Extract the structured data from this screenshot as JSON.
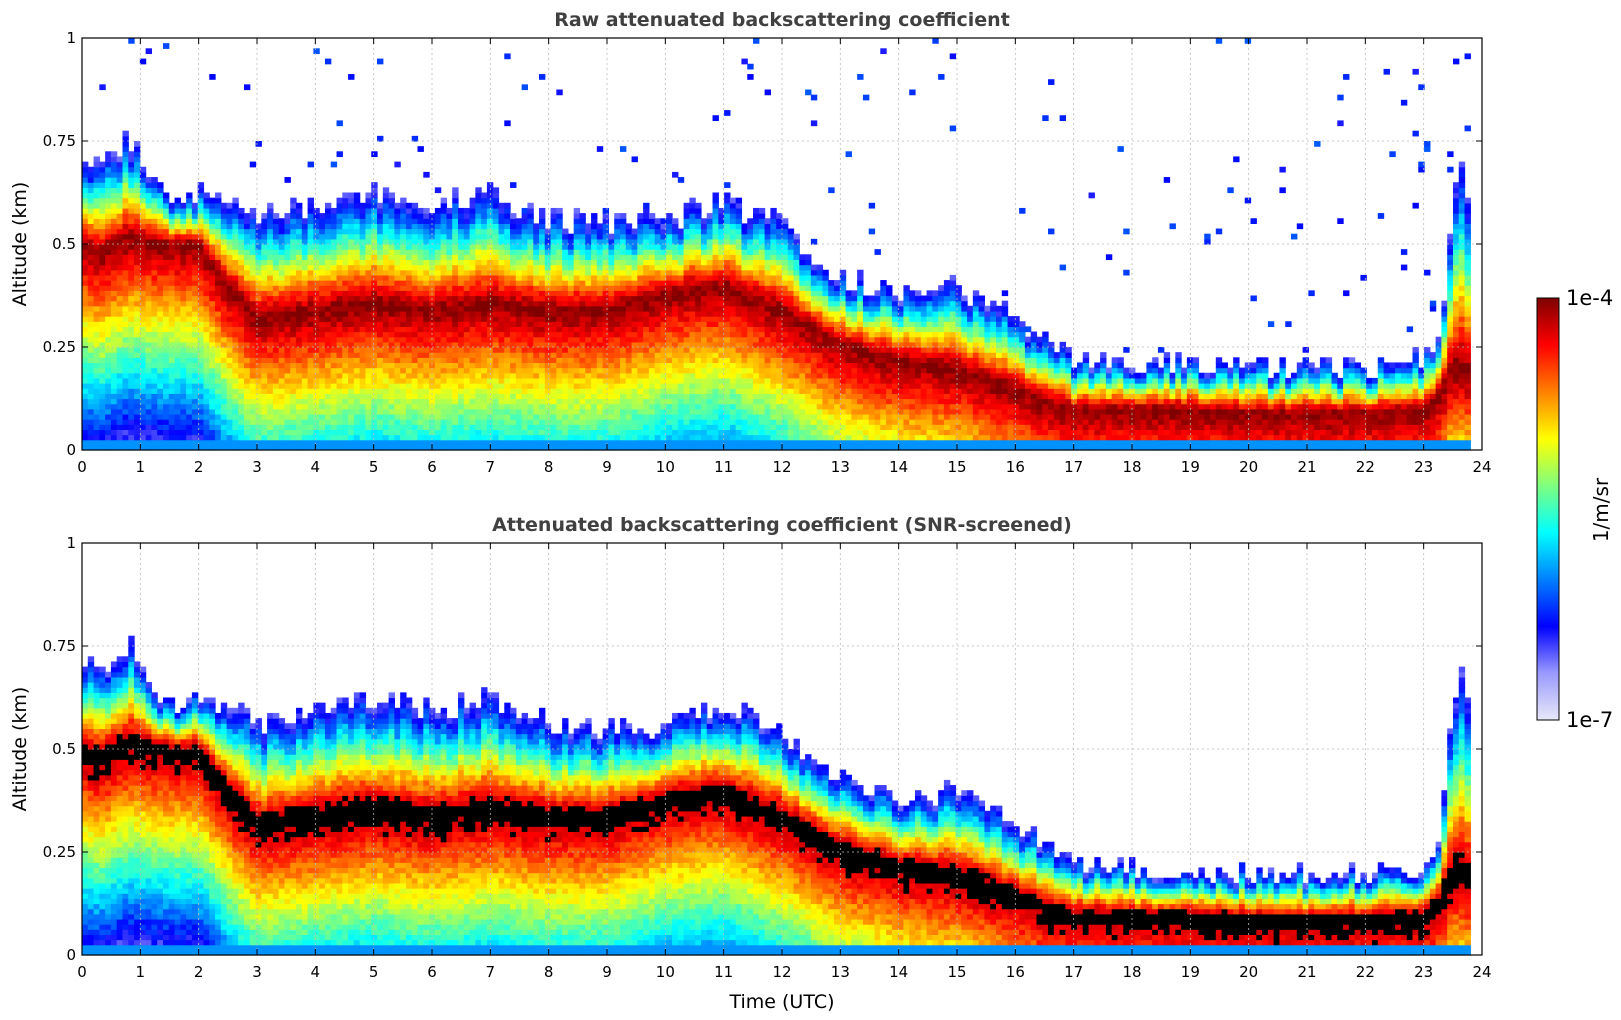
{
  "colors": {
    "accent_dark": "#7f0000",
    "cloud_black": "#000000",
    "grid": "#bbbbbb",
    "title": "#404040"
  },
  "colormap_stops": [
    "#e8e8f8",
    "#9a9aff",
    "#0000ff",
    "#0080ff",
    "#00ffff",
    "#7fff7f",
    "#ffff00",
    "#ff8000",
    "#ff0000",
    "#7f0000"
  ],
  "chart_data": [
    {
      "type": "heatmap",
      "title": "Raw attenuated backscattering coefficient",
      "xlabel": "",
      "ylabel": "Altitude (km)",
      "xlim": [
        0,
        24
      ],
      "ylim": [
        0,
        1
      ],
      "xticks": [
        "0",
        "1",
        "2",
        "3",
        "4",
        "5",
        "6",
        "7",
        "8",
        "9",
        "10",
        "11",
        "12",
        "13",
        "14",
        "15",
        "16",
        "17",
        "18",
        "19",
        "20",
        "21",
        "22",
        "23",
        "24"
      ],
      "yticks": [
        "0",
        "0.25",
        "0.5",
        "0.75",
        "1"
      ],
      "grid": true,
      "data_end_hour": 23.8,
      "profile": {
        "t": [
          0,
          0.3,
          0.8,
          1.5,
          2.0,
          2.5,
          3.0,
          4.0,
          5.0,
          6.0,
          7.0,
          8.0,
          9.0,
          10.0,
          11.0,
          12.0,
          12.5,
          13.0,
          14.0,
          15.0,
          16.0,
          16.5,
          17.0,
          18.0,
          19.0,
          20.0,
          21.0,
          22.0,
          23.0,
          23.3,
          23.5,
          23.7,
          23.8
        ],
        "top": [
          0.72,
          0.7,
          0.75,
          0.6,
          0.62,
          0.62,
          0.56,
          0.6,
          0.62,
          0.6,
          0.62,
          0.56,
          0.55,
          0.56,
          0.6,
          0.55,
          0.48,
          0.42,
          0.38,
          0.4,
          0.32,
          0.27,
          0.22,
          0.21,
          0.21,
          0.2,
          0.2,
          0.2,
          0.22,
          0.3,
          0.6,
          0.72,
          0.55
        ],
        "peak": [
          0.5,
          0.48,
          0.52,
          0.5,
          0.5,
          0.4,
          0.32,
          0.34,
          0.36,
          0.34,
          0.36,
          0.34,
          0.34,
          0.38,
          0.4,
          0.34,
          0.3,
          0.26,
          0.22,
          0.2,
          0.15,
          0.12,
          0.1,
          0.1,
          0.1,
          0.09,
          0.09,
          0.09,
          0.1,
          0.14,
          0.2,
          0.2,
          0.18
        ]
      },
      "noise_spikes": true,
      "saturate_black": false
    },
    {
      "type": "heatmap",
      "title": "Attenuated backscattering coefficient (SNR-screened)",
      "xlabel": "Time (UTC)",
      "ylabel": "Altitude (km)",
      "xlim": [
        0,
        24
      ],
      "ylim": [
        0,
        1
      ],
      "xticks": [
        "0",
        "1",
        "2",
        "3",
        "4",
        "5",
        "6",
        "7",
        "8",
        "9",
        "10",
        "11",
        "12",
        "13",
        "14",
        "15",
        "16",
        "17",
        "18",
        "19",
        "20",
        "21",
        "22",
        "23",
        "24"
      ],
      "yticks": [
        "0",
        "0.25",
        "0.5",
        "0.75",
        "1"
      ],
      "grid": true,
      "data_end_hour": 23.8,
      "profile": {
        "t": [
          0,
          0.3,
          0.8,
          1.5,
          2.0,
          2.5,
          3.0,
          4.0,
          5.0,
          6.0,
          7.0,
          8.0,
          9.0,
          10.0,
          11.0,
          12.0,
          12.5,
          13.0,
          14.0,
          15.0,
          16.0,
          16.5,
          17.0,
          18.0,
          19.0,
          20.0,
          21.0,
          22.0,
          23.0,
          23.3,
          23.5,
          23.7,
          23.8
        ],
        "top": [
          0.72,
          0.7,
          0.75,
          0.6,
          0.62,
          0.62,
          0.56,
          0.6,
          0.62,
          0.6,
          0.62,
          0.56,
          0.55,
          0.56,
          0.6,
          0.55,
          0.48,
          0.42,
          0.38,
          0.4,
          0.32,
          0.27,
          0.22,
          0.21,
          0.21,
          0.2,
          0.2,
          0.2,
          0.22,
          0.3,
          0.6,
          0.72,
          0.55
        ],
        "peak": [
          0.5,
          0.48,
          0.52,
          0.5,
          0.5,
          0.4,
          0.32,
          0.34,
          0.36,
          0.34,
          0.36,
          0.34,
          0.34,
          0.38,
          0.4,
          0.34,
          0.3,
          0.26,
          0.22,
          0.2,
          0.15,
          0.12,
          0.1,
          0.1,
          0.1,
          0.09,
          0.09,
          0.09,
          0.1,
          0.14,
          0.2,
          0.2,
          0.18
        ]
      },
      "noise_spikes": false,
      "saturate_black": true
    }
  ],
  "colorbar": {
    "max_label": "1e-4",
    "min_label": "1e-7",
    "unit_label": "1/m/sr"
  }
}
